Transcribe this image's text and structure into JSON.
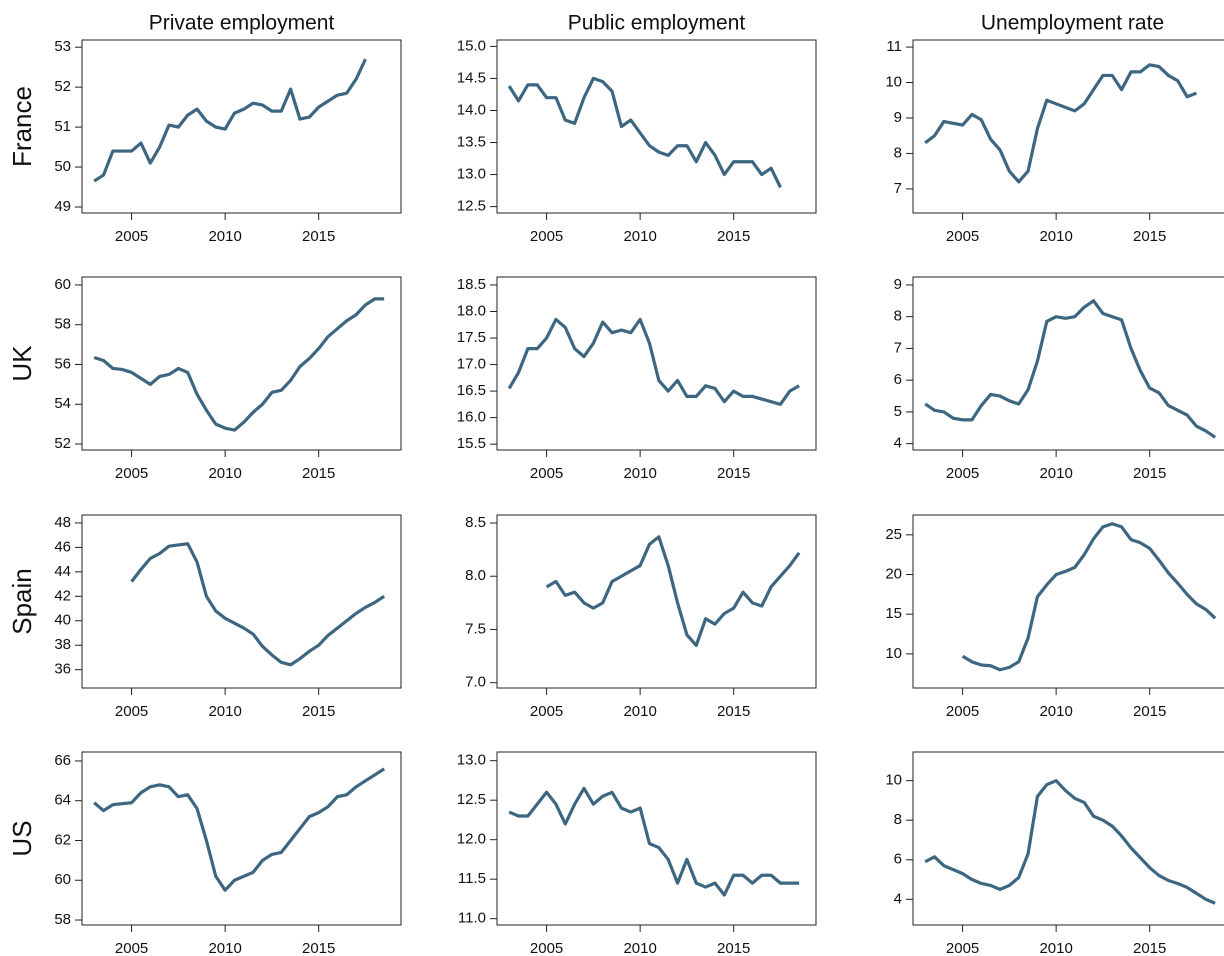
{
  "chart_data": [
    {
      "type": "line",
      "title": "Private employment",
      "ylabel": "France",
      "x": [
        2003,
        2003.5,
        2004,
        2004.5,
        2005,
        2005.5,
        2006,
        2006.5,
        2007,
        2007.5,
        2008,
        2008.5,
        2009,
        2009.5,
        2010,
        2010.5,
        2011,
        2011.5,
        2012,
        2012.5,
        2013,
        2013.5,
        2014,
        2014.5,
        2015,
        2015.5,
        2016,
        2016.5,
        2017,
        2017.5
      ],
      "series": [
        {
          "color": "#3d6680",
          "values": [
            49.65,
            49.8,
            50.4,
            50.4,
            50.4,
            50.6,
            50.1,
            50.5,
            51.05,
            51.0,
            51.3,
            51.45,
            51.15,
            51.0,
            50.95,
            51.35,
            51.45,
            51.6,
            51.55,
            51.4,
            51.4,
            51.95,
            51.2,
            51.25,
            51.5,
            51.65,
            51.8,
            51.85,
            52.2,
            52.7
          ]
        }
      ],
      "xlim": [
        2002.35,
        2019.4
      ],
      "xticks": [
        2005,
        2010,
        2015
      ],
      "ylim": [
        48.85,
        53.18
      ],
      "yticks": [
        49,
        50,
        51,
        52,
        53
      ],
      "grid": false
    },
    {
      "type": "line",
      "title": "Public employment",
      "x": [
        2003,
        2003.5,
        2004,
        2004.5,
        2005,
        2005.5,
        2006,
        2006.5,
        2007,
        2007.5,
        2008,
        2008.5,
        2009,
        2009.5,
        2010,
        2010.5,
        2011,
        2011.5,
        2012,
        2012.5,
        2013,
        2013.5,
        2014,
        2014.5,
        2015,
        2015.5,
        2016,
        2016.5,
        2017,
        2017.5
      ],
      "series": [
        {
          "color": "#3d6680",
          "values": [
            14.38,
            14.15,
            14.4,
            14.4,
            14.2,
            14.2,
            13.85,
            13.8,
            14.2,
            14.5,
            14.45,
            14.3,
            13.75,
            13.85,
            13.65,
            13.45,
            13.35,
            13.3,
            13.45,
            13.45,
            13.2,
            13.5,
            13.3,
            13.0,
            13.2,
            13.2,
            13.2,
            13.0,
            13.1,
            12.8
          ]
        }
      ],
      "xlim": [
        2002.35,
        2019.4
      ],
      "xticks": [
        2005,
        2010,
        2015
      ],
      "ylim": [
        12.4,
        15.1
      ],
      "yticks": [
        12.5,
        {
          "value": 13,
          "label": "13.0"
        },
        13.5,
        {
          "value": 14,
          "label": "14.0"
        },
        14.5,
        {
          "value": 15,
          "label": "15.0"
        }
      ],
      "grid": false
    },
    {
      "type": "line",
      "title": "Unemployment rate",
      "x": [
        2003,
        2003.5,
        2004,
        2004.5,
        2005,
        2005.5,
        2006,
        2006.5,
        2007,
        2007.5,
        2008,
        2008.5,
        2009,
        2009.5,
        2010,
        2010.5,
        2011,
        2011.5,
        2012,
        2012.5,
        2013,
        2013.5,
        2014,
        2014.5,
        2015,
        2015.5,
        2016,
        2016.5,
        2017,
        2017.5
      ],
      "series": [
        {
          "color": "#3d6680",
          "values": [
            8.3,
            8.5,
            8.9,
            8.85,
            8.8,
            9.1,
            8.95,
            8.4,
            8.1,
            7.5,
            7.2,
            7.5,
            8.7,
            9.5,
            9.4,
            9.3,
            9.2,
            9.4,
            9.8,
            10.2,
            10.2,
            9.8,
            10.3,
            10.3,
            10.5,
            10.45,
            10.2,
            10.05,
            9.6,
            9.7
          ]
        }
      ],
      "xlim": [
        2002.35,
        2019.4
      ],
      "xticks": [
        2005,
        2010,
        2015
      ],
      "ylim": [
        6.32,
        11.2
      ],
      "yticks": [
        7,
        8,
        9,
        10,
        11
      ],
      "grid": false
    },
    {
      "type": "line",
      "ylabel": "UK",
      "x": [
        2003,
        2003.5,
        2004,
        2004.5,
        2005,
        2005.5,
        2006,
        2006.5,
        2007,
        2007.5,
        2008,
        2008.5,
        2009,
        2009.5,
        2010,
        2010.5,
        2011,
        2011.5,
        2012,
        2012.5,
        2013,
        2013.5,
        2014,
        2014.5,
        2015,
        2015.5,
        2016,
        2016.5,
        2017,
        2017.5,
        2018,
        2018.5
      ],
      "series": [
        {
          "color": "#3d6680",
          "values": [
            56.35,
            56.2,
            55.8,
            55.75,
            55.6,
            55.3,
            55.0,
            55.4,
            55.5,
            55.8,
            55.6,
            54.5,
            53.7,
            53.0,
            52.8,
            52.7,
            53.1,
            53.6,
            54.0,
            54.6,
            54.7,
            55.2,
            55.9,
            56.3,
            56.8,
            57.4,
            57.8,
            58.2,
            58.5,
            59.0,
            59.3,
            59.3
          ]
        }
      ],
      "xlim": [
        2002.35,
        2019.4
      ],
      "xticks": [
        2005,
        2010,
        2015
      ],
      "ylim": [
        51.7,
        60.4
      ],
      "yticks": [
        52,
        54,
        56,
        58,
        60
      ],
      "grid": false
    },
    {
      "type": "line",
      "x": [
        2003,
        2003.5,
        2004,
        2004.5,
        2005,
        2005.5,
        2006,
        2006.5,
        2007,
        2007.5,
        2008,
        2008.5,
        2009,
        2009.5,
        2010,
        2010.5,
        2011,
        2011.5,
        2012,
        2012.5,
        2013,
        2013.5,
        2014,
        2014.5,
        2015,
        2015.5,
        2016,
        2016.5,
        2017,
        2017.5,
        2018,
        2018.5
      ],
      "series": [
        {
          "color": "#3d6680",
          "values": [
            16.55,
            16.85,
            17.3,
            17.3,
            17.5,
            17.85,
            17.7,
            17.3,
            17.15,
            17.4,
            17.8,
            17.6,
            17.65,
            17.6,
            17.85,
            17.4,
            16.7,
            16.5,
            16.7,
            16.4,
            16.4,
            16.6,
            16.55,
            16.3,
            16.5,
            16.4,
            16.4,
            16.35,
            16.3,
            16.25,
            16.5,
            16.6
          ]
        }
      ],
      "xlim": [
        2002.35,
        2019.4
      ],
      "xticks": [
        2005,
        2010,
        2015
      ],
      "ylim": [
        15.39,
        18.65
      ],
      "yticks": [
        15.5,
        {
          "value": 16,
          "label": "16.0"
        },
        16.5,
        {
          "value": 17,
          "label": "17.0"
        },
        17.5,
        {
          "value": 18,
          "label": "18.0"
        },
        18.5
      ],
      "grid": false
    },
    {
      "type": "line",
      "x": [
        2003,
        2003.5,
        2004,
        2004.5,
        2005,
        2005.5,
        2006,
        2006.5,
        2007,
        2007.5,
        2008,
        2008.5,
        2009,
        2009.5,
        2010,
        2010.5,
        2011,
        2011.5,
        2012,
        2012.5,
        2013,
        2013.5,
        2014,
        2014.5,
        2015,
        2015.5,
        2016,
        2016.5,
        2017,
        2017.5,
        2018,
        2018.5
      ],
      "series": [
        {
          "color": "#3d6680",
          "values": [
            5.25,
            5.05,
            5.0,
            4.8,
            4.75,
            4.75,
            5.2,
            5.55,
            5.5,
            5.35,
            5.25,
            5.7,
            6.6,
            7.85,
            8.0,
            7.95,
            8.0,
            8.3,
            8.5,
            8.1,
            8.0,
            7.9,
            7.0,
            6.3,
            5.75,
            5.6,
            5.2,
            5.05,
            4.9,
            4.55,
            4.4,
            4.2
          ]
        }
      ],
      "xlim": [
        2002.35,
        2019.4
      ],
      "xticks": [
        2005,
        2010,
        2015
      ],
      "ylim": [
        3.8,
        9.25
      ],
      "yticks": [
        4,
        5,
        6,
        7,
        8,
        9
      ],
      "grid": false
    },
    {
      "type": "line",
      "ylabel": "Spain",
      "x": [
        2005,
        2005.5,
        2006,
        2006.5,
        2007,
        2007.5,
        2008,
        2008.5,
        2009,
        2009.5,
        2010,
        2010.5,
        2011,
        2011.5,
        2012,
        2012.5,
        2013,
        2013.5,
        2014,
        2014.5,
        2015,
        2015.5,
        2016,
        2016.5,
        2017,
        2017.5,
        2018,
        2018.5
      ],
      "series": [
        {
          "color": "#3d6680",
          "values": [
            43.2,
            44.2,
            45.1,
            45.5,
            46.1,
            46.2,
            46.3,
            44.8,
            42.0,
            40.8,
            40.2,
            39.8,
            39.4,
            38.9,
            37.9,
            37.2,
            36.6,
            36.4,
            36.9,
            37.5,
            38.0,
            38.8,
            39.4,
            40.0,
            40.6,
            41.1,
            41.5,
            42.0
          ]
        }
      ],
      "xlim": [
        2002.35,
        2019.4
      ],
      "xticks": [
        2005,
        2010,
        2015
      ],
      "ylim": [
        34.5,
        48.65
      ],
      "yticks": [
        36,
        38,
        40,
        42,
        44,
        46,
        48
      ],
      "grid": false
    },
    {
      "type": "line",
      "x": [
        2005,
        2005.5,
        2006,
        2006.5,
        2007,
        2007.5,
        2008,
        2008.5,
        2009,
        2009.5,
        2010,
        2010.5,
        2011,
        2011.5,
        2012,
        2012.5,
        2013,
        2013.5,
        2014,
        2014.5,
        2015,
        2015.5,
        2016,
        2016.5,
        2017,
        2017.5,
        2018,
        2018.5
      ],
      "series": [
        {
          "color": "#3d6680",
          "values": [
            7.9,
            7.95,
            7.82,
            7.85,
            7.75,
            7.7,
            7.75,
            7.95,
            8.0,
            8.05,
            8.1,
            8.3,
            8.37,
            8.1,
            7.75,
            7.45,
            7.35,
            7.6,
            7.55,
            7.65,
            7.7,
            7.85,
            7.75,
            7.72,
            7.9,
            8.0,
            8.1,
            8.22
          ]
        }
      ],
      "xlim": [
        2002.35,
        2019.4
      ],
      "xticks": [
        2005,
        2010,
        2015
      ],
      "ylim": [
        6.95,
        8.575
      ],
      "yticks": [
        {
          "value": 7,
          "label": "7.0"
        },
        7.5,
        {
          "value": 8,
          "label": "8.0"
        },
        8.5
      ],
      "grid": false
    },
    {
      "type": "line",
      "x": [
        2005,
        2005.5,
        2006,
        2006.5,
        2007,
        2007.5,
        2008,
        2008.5,
        2009,
        2009.5,
        2010,
        2010.5,
        2011,
        2011.5,
        2012,
        2012.5,
        2013,
        2013.5,
        2014,
        2014.5,
        2015,
        2015.5,
        2016,
        2016.5,
        2017,
        2017.5,
        2018,
        2018.5
      ],
      "series": [
        {
          "color": "#3d6680",
          "values": [
            9.7,
            9.0,
            8.6,
            8.5,
            8.0,
            8.3,
            9.0,
            12.0,
            17.2,
            18.7,
            20.0,
            20.4,
            20.9,
            22.5,
            24.5,
            26.0,
            26.4,
            26.0,
            24.4,
            24.0,
            23.3,
            21.8,
            20.2,
            18.9,
            17.5,
            16.3,
            15.6,
            14.5
          ]
        }
      ],
      "xlim": [
        2002.35,
        2019.4
      ],
      "xticks": [
        2005,
        2010,
        2015
      ],
      "ylim": [
        5.7,
        27.5
      ],
      "yticks": [
        10,
        15,
        20,
        25
      ],
      "grid": false
    },
    {
      "type": "line",
      "ylabel": "US",
      "x": [
        2003,
        2003.5,
        2004,
        2004.5,
        2005,
        2005.5,
        2006,
        2006.5,
        2007,
        2007.5,
        2008,
        2008.5,
        2009,
        2009.5,
        2010,
        2010.5,
        2011,
        2011.5,
        2012,
        2012.5,
        2013,
        2013.5,
        2014,
        2014.5,
        2015,
        2015.5,
        2016,
        2016.5,
        2017,
        2017.5,
        2018,
        2018.5
      ],
      "series": [
        {
          "color": "#3d6680",
          "values": [
            63.9,
            63.5,
            63.8,
            63.85,
            63.9,
            64.4,
            64.7,
            64.8,
            64.7,
            64.2,
            64.3,
            63.6,
            62.0,
            60.2,
            59.5,
            60.0,
            60.2,
            60.4,
            61.0,
            61.3,
            61.4,
            62.0,
            62.6,
            63.2,
            63.4,
            63.7,
            64.2,
            64.3,
            64.7,
            65.0,
            65.3,
            65.6
          ]
        }
      ],
      "xlim": [
        2002.35,
        2019.4
      ],
      "xticks": [
        2005,
        2010,
        2015
      ],
      "ylim": [
        57.75,
        66.45
      ],
      "yticks": [
        58,
        60,
        62,
        64,
        66
      ],
      "grid": false
    },
    {
      "type": "line",
      "x": [
        2003,
        2003.5,
        2004,
        2004.5,
        2005,
        2005.5,
        2006,
        2006.5,
        2007,
        2007.5,
        2008,
        2008.5,
        2009,
        2009.5,
        2010,
        2010.5,
        2011,
        2011.5,
        2012,
        2012.5,
        2013,
        2013.5,
        2014,
        2014.5,
        2015,
        2015.5,
        2016,
        2016.5,
        2017,
        2017.5,
        2018,
        2018.5
      ],
      "series": [
        {
          "color": "#3d6680",
          "values": [
            12.35,
            12.3,
            12.3,
            12.45,
            12.6,
            12.45,
            12.2,
            12.45,
            12.65,
            12.45,
            12.55,
            12.6,
            12.4,
            12.35,
            12.4,
            11.95,
            11.9,
            11.75,
            11.45,
            11.75,
            11.45,
            11.4,
            11.45,
            11.3,
            11.55,
            11.55,
            11.45,
            11.55,
            11.55,
            11.45,
            11.45,
            11.45
          ]
        }
      ],
      "xlim": [
        2002.35,
        2019.4
      ],
      "xticks": [
        2005,
        2010,
        2015
      ],
      "ylim": [
        10.92,
        13.11
      ],
      "yticks": [
        {
          "value": 11,
          "label": "11.0"
        },
        11.5,
        {
          "value": 12,
          "label": "12.0"
        },
        12.5,
        {
          "value": 13,
          "label": "13.0"
        }
      ],
      "grid": false
    },
    {
      "type": "line",
      "x": [
        2003,
        2003.5,
        2004,
        2004.5,
        2005,
        2005.5,
        2006,
        2006.5,
        2007,
        2007.5,
        2008,
        2008.5,
        2009,
        2009.5,
        2010,
        2010.5,
        2011,
        2011.5,
        2012,
        2012.5,
        2013,
        2013.5,
        2014,
        2014.5,
        2015,
        2015.5,
        2016,
        2016.5,
        2017,
        2017.5,
        2018,
        2018.5
      ],
      "series": [
        {
          "color": "#3d6680",
          "values": [
            5.9,
            6.15,
            5.7,
            5.5,
            5.3,
            5.0,
            4.8,
            4.7,
            4.5,
            4.7,
            5.1,
            6.3,
            9.2,
            9.8,
            10.0,
            9.5,
            9.1,
            8.9,
            8.2,
            8.0,
            7.7,
            7.2,
            6.6,
            6.1,
            5.6,
            5.2,
            4.95,
            4.8,
            4.6,
            4.3,
            4.0,
            3.8
          ]
        }
      ],
      "xlim": [
        2002.35,
        2019.4
      ],
      "xticks": [
        2005,
        2010,
        2015
      ],
      "ylim": [
        2.7,
        11.45
      ],
      "yticks": [
        4,
        6,
        8,
        10
      ],
      "grid": false
    }
  ]
}
